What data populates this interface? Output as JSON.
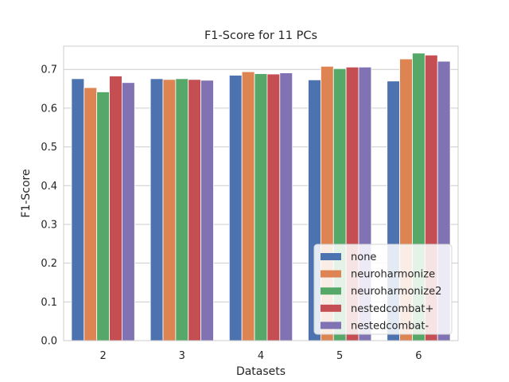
{
  "chart_data": {
    "type": "bar",
    "title": "F1-Score for 11 PCs",
    "xlabel": "Datasets",
    "ylabel": "F1-Score",
    "categories": [
      "2",
      "3",
      "4",
      "5",
      "6"
    ],
    "ylim": [
      0,
      0.76
    ],
    "yticks": [
      "0.0",
      "0.1",
      "0.2",
      "0.3",
      "0.4",
      "0.5",
      "0.6",
      "0.7"
    ],
    "grid": "horizontal",
    "legend_position": "lower-right",
    "series": [
      {
        "name": "none",
        "color": "#4c72b0",
        "values": [
          0.676,
          0.676,
          0.685,
          0.673,
          0.67
        ]
      },
      {
        "name": "neuroharmonize",
        "color": "#dd8452",
        "values": [
          0.653,
          0.674,
          0.694,
          0.708,
          0.727
        ]
      },
      {
        "name": "neuroharmonize2",
        "color": "#55a868",
        "values": [
          0.642,
          0.676,
          0.689,
          0.702,
          0.742
        ]
      },
      {
        "name": "nestedcombat+",
        "color": "#c44e52",
        "values": [
          0.683,
          0.674,
          0.688,
          0.706,
          0.737
        ]
      },
      {
        "name": "nestedcombat-",
        "color": "#8172b3",
        "values": [
          0.666,
          0.672,
          0.691,
          0.706,
          0.721
        ]
      }
    ]
  }
}
